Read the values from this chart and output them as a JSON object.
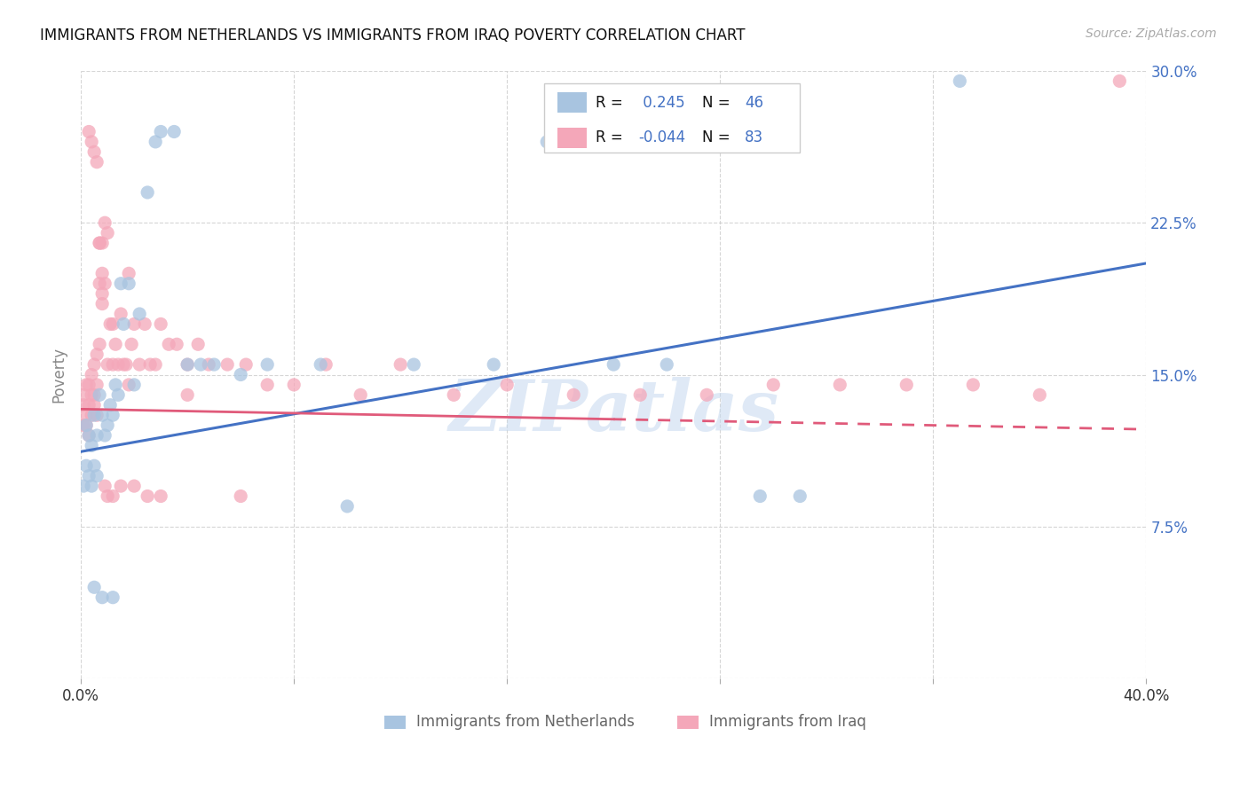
{
  "title": "IMMIGRANTS FROM NETHERLANDS VS IMMIGRANTS FROM IRAQ POVERTY CORRELATION CHART",
  "source": "Source: ZipAtlas.com",
  "ylabel": "Poverty",
  "xlim": [
    0.0,
    0.4
  ],
  "ylim": [
    0.0,
    0.3
  ],
  "xtick_positions": [
    0.0,
    0.08,
    0.16,
    0.24,
    0.32,
    0.4
  ],
  "xticklabels": [
    "0.0%",
    "",
    "",
    "",
    "",
    "40.0%"
  ],
  "ytick_positions": [
    0.0,
    0.075,
    0.15,
    0.225,
    0.3
  ],
  "yticklabels_right": [
    "",
    "7.5%",
    "15.0%",
    "22.5%",
    "30.0%"
  ],
  "R_netherlands": 0.245,
  "N_netherlands": 46,
  "R_iraq": -0.044,
  "N_iraq": 83,
  "color_netherlands": "#a8c4e0",
  "color_iraq": "#f4a7b9",
  "color_netherlands_line": "#4472c4",
  "color_iraq_line": "#e05a7a",
  "watermark": "ZIPatlas",
  "nl_line_x0": 0.0,
  "nl_line_y0": 0.112,
  "nl_line_x1": 0.4,
  "nl_line_y1": 0.205,
  "iq_line_solid_x0": 0.0,
  "iq_line_solid_y0": 0.133,
  "iq_line_solid_x1": 0.2,
  "iq_line_solid_y1": 0.128,
  "iq_line_dash_x0": 0.2,
  "iq_line_dash_y0": 0.128,
  "iq_line_dash_x1": 0.4,
  "iq_line_dash_y1": 0.123,
  "nl_points_x": [
    0.001,
    0.002,
    0.002,
    0.003,
    0.003,
    0.004,
    0.004,
    0.005,
    0.005,
    0.006,
    0.006,
    0.007,
    0.008,
    0.009,
    0.01,
    0.011,
    0.012,
    0.013,
    0.014,
    0.015,
    0.016,
    0.018,
    0.02,
    0.022,
    0.025,
    0.028,
    0.03,
    0.035,
    0.04,
    0.045,
    0.05,
    0.06,
    0.07,
    0.09,
    0.1,
    0.125,
    0.155,
    0.175,
    0.2,
    0.22,
    0.255,
    0.27,
    0.33,
    0.005,
    0.008,
    0.012
  ],
  "nl_points_y": [
    0.095,
    0.125,
    0.105,
    0.12,
    0.1,
    0.115,
    0.095,
    0.13,
    0.105,
    0.12,
    0.1,
    0.14,
    0.13,
    0.12,
    0.125,
    0.135,
    0.13,
    0.145,
    0.14,
    0.195,
    0.175,
    0.195,
    0.145,
    0.18,
    0.24,
    0.265,
    0.27,
    0.27,
    0.155,
    0.155,
    0.155,
    0.15,
    0.155,
    0.155,
    0.085,
    0.155,
    0.155,
    0.265,
    0.155,
    0.155,
    0.09,
    0.09,
    0.295,
    0.045,
    0.04,
    0.04
  ],
  "iq_points_x": [
    0.001,
    0.001,
    0.001,
    0.002,
    0.002,
    0.002,
    0.003,
    0.003,
    0.003,
    0.004,
    0.004,
    0.004,
    0.005,
    0.005,
    0.005,
    0.006,
    0.006,
    0.006,
    0.007,
    0.007,
    0.007,
    0.008,
    0.008,
    0.008,
    0.009,
    0.009,
    0.01,
    0.01,
    0.011,
    0.012,
    0.012,
    0.013,
    0.014,
    0.015,
    0.016,
    0.017,
    0.018,
    0.019,
    0.02,
    0.022,
    0.024,
    0.026,
    0.028,
    0.03,
    0.033,
    0.036,
    0.04,
    0.044,
    0.048,
    0.055,
    0.062,
    0.07,
    0.08,
    0.092,
    0.105,
    0.12,
    0.14,
    0.16,
    0.185,
    0.21,
    0.235,
    0.26,
    0.285,
    0.31,
    0.335,
    0.36,
    0.39,
    0.003,
    0.004,
    0.005,
    0.006,
    0.007,
    0.008,
    0.009,
    0.01,
    0.012,
    0.015,
    0.02,
    0.025,
    0.03,
    0.018,
    0.04,
    0.06
  ],
  "iq_points_y": [
    0.135,
    0.125,
    0.14,
    0.13,
    0.125,
    0.145,
    0.135,
    0.145,
    0.12,
    0.14,
    0.13,
    0.15,
    0.14,
    0.135,
    0.155,
    0.145,
    0.16,
    0.13,
    0.195,
    0.215,
    0.165,
    0.2,
    0.185,
    0.215,
    0.225,
    0.195,
    0.22,
    0.155,
    0.175,
    0.175,
    0.155,
    0.165,
    0.155,
    0.18,
    0.155,
    0.155,
    0.2,
    0.165,
    0.175,
    0.155,
    0.175,
    0.155,
    0.155,
    0.175,
    0.165,
    0.165,
    0.155,
    0.165,
    0.155,
    0.155,
    0.155,
    0.145,
    0.145,
    0.155,
    0.14,
    0.155,
    0.14,
    0.145,
    0.14,
    0.14,
    0.14,
    0.145,
    0.145,
    0.145,
    0.145,
    0.14,
    0.295,
    0.27,
    0.265,
    0.26,
    0.255,
    0.215,
    0.19,
    0.095,
    0.09,
    0.09,
    0.095,
    0.095,
    0.09,
    0.09,
    0.145,
    0.14,
    0.09
  ]
}
